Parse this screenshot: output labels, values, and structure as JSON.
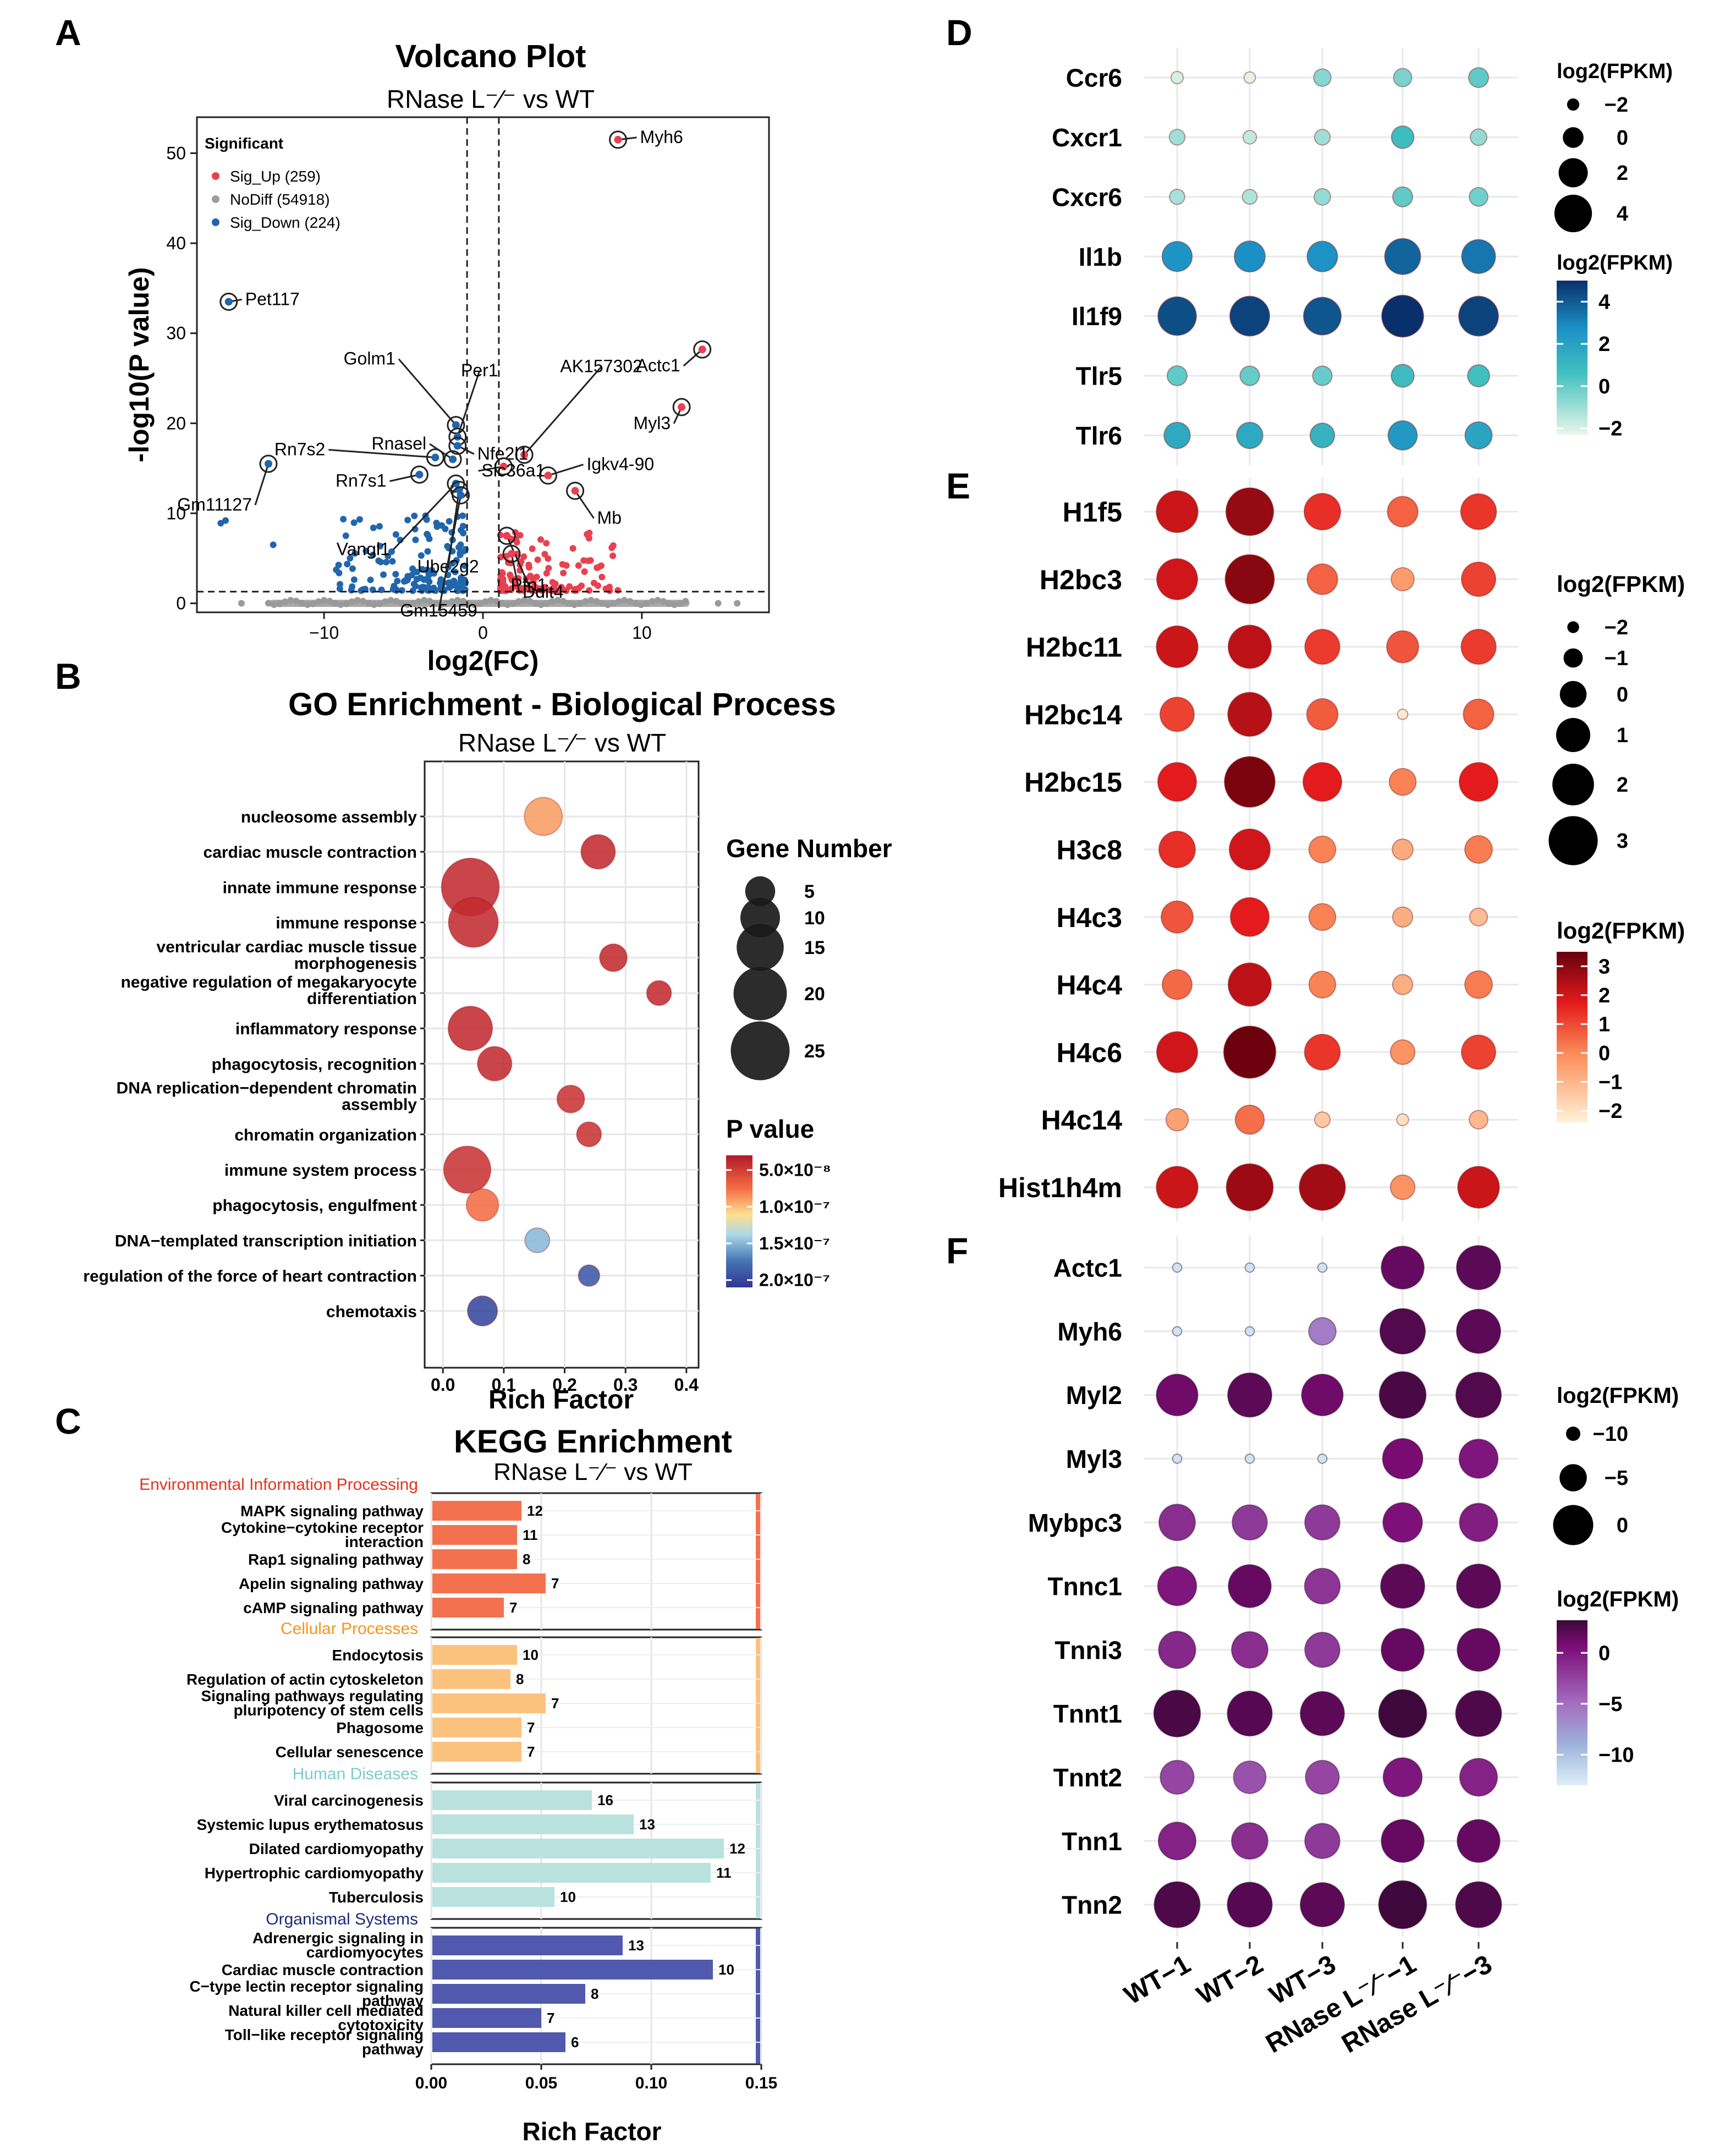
{
  "panel_letters": [
    "A",
    "B",
    "C",
    "D",
    "E",
    "F"
  ],
  "chart_data": [
    {
      "id": "volcano",
      "type": "scatter",
      "title": "Volcano Plot",
      "subtitle": "RNase L⁻⁄⁻ vs WT",
      "xlabel": "log2(FC)",
      "ylabel": "-log10(P value)",
      "xlim": [
        -18,
        18
      ],
      "ylim": [
        -1,
        54
      ],
      "xticks": [
        -10,
        0,
        10
      ],
      "xtick_labels": [
        "−10",
        "0",
        "10"
      ],
      "yticks": [
        0,
        10,
        20,
        30,
        40,
        50
      ],
      "fc_threshold": [
        -1,
        1
      ],
      "p_threshold": 1.3,
      "legend_title": "Significant",
      "legend": [
        {
          "label": "Sig_Up (259)",
          "color": "#e8414f"
        },
        {
          "label": "NoDiff (54918)",
          "color": "#9e9e9e"
        },
        {
          "label": "Sig_Down (224)",
          "color": "#2166ac"
        }
      ],
      "labeled_points": [
        {
          "gene": "Myh6",
          "x": 8.5,
          "y": 51.5,
          "group": "up"
        },
        {
          "gene": "Pet117",
          "x": -16.0,
          "y": 33.5,
          "group": "down"
        },
        {
          "gene": "Actc1",
          "x": 13.8,
          "y": 28.2,
          "group": "up"
        },
        {
          "gene": "Myl3",
          "x": 12.5,
          "y": 21.8,
          "group": "up"
        },
        {
          "gene": "Golm1",
          "x": -1.7,
          "y": 19.8,
          "group": "down"
        },
        {
          "gene": "Per1",
          "x": -1.6,
          "y": 18.5,
          "group": "down"
        },
        {
          "gene": "AK157302",
          "x": 2.6,
          "y": 16.5,
          "group": "up"
        },
        {
          "gene": "Nfe2l1",
          "x": -1.6,
          "y": 17.5,
          "group": "down"
        },
        {
          "gene": "Rn7s2",
          "x": -3.0,
          "y": 16.2,
          "group": "down"
        },
        {
          "gene": "Rnasel",
          "x": -1.9,
          "y": 16.0,
          "group": "down"
        },
        {
          "gene": "Gm11127",
          "x": -13.5,
          "y": 15.5,
          "group": "down"
        },
        {
          "gene": "Igkv4-90",
          "x": 4.1,
          "y": 14.2,
          "group": "up"
        },
        {
          "gene": "Rn7s1",
          "x": -4.0,
          "y": 14.3,
          "group": "down"
        },
        {
          "gene": "Slc36a1",
          "x": 1.3,
          "y": 15.2,
          "group": "up"
        },
        {
          "gene": "Mb",
          "x": 5.8,
          "y": 12.5,
          "group": "up"
        },
        {
          "gene": "Vangl1",
          "x": -1.7,
          "y": 13.3,
          "group": "down"
        },
        {
          "gene": "Ube2g2",
          "x": -1.5,
          "y": 12.6,
          "group": "down"
        },
        {
          "gene": "Pfn1",
          "x": 1.5,
          "y": 7.5,
          "group": "up"
        },
        {
          "gene": "Gm15459",
          "x": -1.4,
          "y": 12.0,
          "group": "down"
        },
        {
          "gene": "Ddit4",
          "x": 1.8,
          "y": 5.5,
          "group": "up"
        }
      ]
    },
    {
      "id": "go",
      "type": "scatter",
      "title": "GO Enrichment - Biological Process",
      "subtitle": "RNase L⁻⁄⁻ vs WT",
      "xlabel": "Rich Factor",
      "xlim": [
        -0.03,
        0.42
      ],
      "xticks": [
        0.0,
        0.1,
        0.2,
        0.3,
        0.4
      ],
      "xtick_labels": [
        "0.0",
        "0.1",
        "0.2",
        "0.3",
        "0.4"
      ],
      "terms": [
        {
          "label": [
            "nucleosome assembly"
          ],
          "rich": 0.165,
          "genes": 9,
          "p": 9e-08
        },
        {
          "label": [
            "cardiac muscle contraction"
          ],
          "rich": 0.255,
          "genes": 7,
          "p": 4e-08
        },
        {
          "label": [
            "innate immune response"
          ],
          "rich": 0.045,
          "genes": 24,
          "p": 4e-08
        },
        {
          "label": [
            "immune response"
          ],
          "rich": 0.05,
          "genes": 17,
          "p": 4e-08
        },
        {
          "label": [
            "ventricular cardiac muscle tissue",
            "morphogenesis"
          ],
          "rich": 0.28,
          "genes": 4,
          "p": 4e-08
        },
        {
          "label": [
            "negative regulation of megakaryocyte",
            "differentiation"
          ],
          "rich": 0.355,
          "genes": 3,
          "p": 4e-08
        },
        {
          "label": [
            "inflammatory response"
          ],
          "rich": 0.045,
          "genes": 13,
          "p": 4e-08
        },
        {
          "label": [
            "phagocytosis, recognition"
          ],
          "rich": 0.085,
          "genes": 7,
          "p": 4e-08
        },
        {
          "label": [
            "DNA replication−dependent chromatin",
            "assembly"
          ],
          "rich": 0.21,
          "genes": 4,
          "p": 4.5e-08
        },
        {
          "label": [
            "chromatin organization"
          ],
          "rich": 0.24,
          "genes": 3,
          "p": 4.5e-08
        },
        {
          "label": [
            "immune system process"
          ],
          "rich": 0.04,
          "genes": 15,
          "p": 4.5e-08
        },
        {
          "label": [
            "phagocytosis, engulfment"
          ],
          "rich": 0.065,
          "genes": 6,
          "p": 7.5e-08
        },
        {
          "label": [
            "DNA−templated transcription initiation"
          ],
          "rich": 0.155,
          "genes": 3,
          "p": 1.5e-07
        },
        {
          "label": [
            "regulation of the force of heart contraction"
          ],
          "rich": 0.24,
          "genes": 2,
          "p": 1.9e-07
        },
        {
          "label": [
            "chemotaxis"
          ],
          "rich": 0.065,
          "genes": 5,
          "p": 2e-07
        }
      ],
      "size_legend_title": "Gene Number",
      "size_legend": [
        5,
        10,
        15,
        20,
        25
      ],
      "color_legend_title": "P value",
      "color_legend": [
        "5.0×10⁻⁸",
        "1.0×10⁻⁷",
        "1.5×10⁻⁷",
        "2.0×10⁻⁷"
      ],
      "color_legend_values": [
        5e-08,
        1e-07,
        1.5e-07,
        2e-07
      ],
      "color_range": [
        3e-08,
        2.1e-07
      ]
    },
    {
      "id": "kegg",
      "type": "bar",
      "title": "KEGG Enrichment",
      "subtitle": "RNase L⁻⁄⁻ vs WT",
      "xlabel": "Rich Factor",
      "xlim": [
        0,
        0.15
      ],
      "xticks": [
        0.0,
        0.05,
        0.1,
        0.15
      ],
      "xtick_labels": [
        "0.00",
        "0.05",
        "0.10",
        "0.15"
      ],
      "groups": [
        {
          "name": "Environmental Information Processing",
          "color": "#f4714f",
          "label_color": "#e8321e",
          "bars": [
            {
              "label": [
                "MAPK signaling pathway"
              ],
              "value": 0.041,
              "count": 12
            },
            {
              "label": [
                "Cytokine−cytokine receptor",
                "interaction"
              ],
              "value": 0.039,
              "count": 11
            },
            {
              "label": [
                "Rap1 signaling pathway"
              ],
              "value": 0.039,
              "count": 8
            },
            {
              "label": [
                "Apelin signaling pathway"
              ],
              "value": 0.052,
              "count": 7
            },
            {
              "label": [
                "cAMP signaling pathway"
              ],
              "value": 0.033,
              "count": 7
            }
          ]
        },
        {
          "name": "Cellular Processes",
          "color": "#fbc27e",
          "label_color": "#f7941d",
          "bars": [
            {
              "label": [
                "Endocytosis"
              ],
              "value": 0.039,
              "count": 10
            },
            {
              "label": [
                "Regulation of actin cytoskeleton"
              ],
              "value": 0.036,
              "count": 8
            },
            {
              "label": [
                "Signaling pathways regulating",
                "pluripotency of stem cells"
              ],
              "value": 0.052,
              "count": 7
            },
            {
              "label": [
                "Phagosome"
              ],
              "value": 0.041,
              "count": 7
            },
            {
              "label": [
                "Cellular senescence"
              ],
              "value": 0.041,
              "count": 7
            }
          ]
        },
        {
          "name": "Human Diseases",
          "color": "#b9e2df",
          "label_color": "#7ecdc6",
          "bars": [
            {
              "label": [
                "Viral carcinogenesis"
              ],
              "value": 0.073,
              "count": 16
            },
            {
              "label": [
                "Systemic lupus erythematosus"
              ],
              "value": 0.092,
              "count": 13
            },
            {
              "label": [
                "Dilated cardiomyopathy"
              ],
              "value": 0.133,
              "count": 12
            },
            {
              "label": [
                "Hypertrophic cardiomyopathy"
              ],
              "value": 0.127,
              "count": 11
            },
            {
              "label": [
                "Tuberculosis"
              ],
              "value": 0.056,
              "count": 10
            }
          ]
        },
        {
          "name": "Organismal Systems",
          "color": "#5059ad",
          "label_color": "#1f2a7a",
          "bars": [
            {
              "label": [
                "Adrenergic signaling in",
                "cardiomyocytes"
              ],
              "value": 0.087,
              "count": 13
            },
            {
              "label": [
                "Cardiac muscle contraction"
              ],
              "value": 0.128,
              "count": 10
            },
            {
              "label": [
                "C−type lectin receptor signaling",
                "pathway"
              ],
              "value": 0.07,
              "count": 8
            },
            {
              "label": [
                "Natural killer cell mediated",
                "cytotoxicity"
              ],
              "value": 0.05,
              "count": 7
            },
            {
              "label": [
                "Toll−like receptor signaling",
                "pathway"
              ],
              "value": 0.061,
              "count": 6
            }
          ]
        }
      ]
    },
    {
      "id": "dot_d",
      "type": "heatmap",
      "samples": [
        "WT−1",
        "WT−2",
        "WT−3",
        "RNase L⁻⁄⁻−1",
        "RNase L⁻⁄⁻−3"
      ],
      "genes": [
        "Ccr6",
        "Cxcr1",
        "Cxcr6",
        "Il1b",
        "Il1f9",
        "Tlr5",
        "Tlr6"
      ],
      "values": [
        [
          -2.0,
          -2.2,
          -0.8,
          -0.6,
          -0.2
        ],
        [
          -1.2,
          -1.7,
          -1.2,
          0.4,
          -1.0
        ],
        [
          -1.3,
          -1.4,
          -1.0,
          -0.2,
          -0.5
        ],
        [
          2.2,
          2.4,
          2.3,
          3.6,
          3.1
        ],
        [
          4.2,
          4.5,
          4.0,
          5.0,
          4.5
        ],
        [
          -0.2,
          -0.3,
          -0.3,
          0.5,
          0.3
        ],
        [
          1.3,
          1.3,
          0.9,
          2.0,
          1.5
        ]
      ],
      "size_legend_title": "log2(FPKM)",
      "size_legend": [
        -2,
        0,
        2,
        4
      ],
      "size_legend_labels": [
        "−2",
        "0",
        "2",
        "4"
      ],
      "color_legend_title": "log2(FPKM)",
      "color_legend": [
        4,
        2,
        0,
        -2
      ],
      "color_legend_labels": [
        "4",
        "2",
        "0",
        "−2"
      ],
      "range": [
        -2.3,
        5.0
      ]
    },
    {
      "id": "dot_e",
      "type": "heatmap",
      "samples": [
        "WT−1",
        "WT−2",
        "WT−3",
        "RNase L⁻⁄⁻−1",
        "RNase L⁻⁄⁻−3"
      ],
      "genes": [
        "H1f5",
        "H2bc3",
        "H2bc11",
        "H2bc14",
        "H2bc15",
        "H3c8",
        "H4c3",
        "H4c4",
        "H4c6",
        "H4c14",
        "Hist1h4m"
      ],
      "values": [
        [
          2.0,
          2.8,
          1.3,
          0.5,
          1.2
        ],
        [
          1.9,
          3.0,
          0.5,
          -0.5,
          1.0
        ],
        [
          2.0,
          2.2,
          1.1,
          0.7,
          1.1
        ],
        [
          1.0,
          2.3,
          0.6,
          -2.2,
          0.5
        ],
        [
          1.6,
          3.2,
          1.6,
          0.0,
          1.6
        ],
        [
          1.3,
          1.9,
          0.0,
          -0.8,
          0.1
        ],
        [
          0.7,
          1.6,
          0.0,
          -0.9,
          -1.2
        ],
        [
          0.4,
          2.2,
          0.0,
          -0.9,
          0.1
        ],
        [
          1.9,
          3.4,
          1.2,
          -0.3,
          1.0
        ],
        [
          -0.6,
          0.3,
          -1.5,
          -2.0,
          -1.1
        ],
        [
          2.0,
          2.7,
          2.6,
          -0.3,
          2.0
        ]
      ],
      "size_legend_title": "log2(FPKM)",
      "size_legend": [
        -2,
        -1,
        0,
        1,
        2,
        3
      ],
      "size_legend_labels": [
        "−2",
        "−1",
        "0",
        "1",
        "2",
        "3"
      ],
      "color_legend_title": "log2(FPKM)",
      "color_legend": [
        3,
        2,
        1,
        0,
        -1,
        -2
      ],
      "color_legend_labels": [
        "3",
        "2",
        "1",
        "0",
        "−1",
        "−2"
      ],
      "range": [
        -2.4,
        3.5
      ]
    },
    {
      "id": "dot_f",
      "type": "heatmap",
      "samples": [
        "WT−1",
        "WT−2",
        "WT−3",
        "RNase L⁻⁄⁻−1",
        "RNase L⁻⁄⁻−3"
      ],
      "genes": [
        "Actc1",
        "Myh6",
        "Myl2",
        "Myl3",
        "Mybpc3",
        "Tnnc1",
        "Tnni3",
        "Tnnt1",
        "Tnnt2",
        "Tnn1",
        "Tnn2"
      ],
      "values": [
        [
          -12.0,
          -12.0,
          -12.0,
          1.0,
          1.5
        ],
        [
          -12.0,
          -12.0,
          -5.0,
          2.0,
          1.5
        ],
        [
          0.5,
          1.5,
          0.5,
          2.5,
          2.0
        ],
        [
          -12.0,
          -12.0,
          -12.0,
          0.0,
          -0.5
        ],
        [
          -1.5,
          -2.0,
          -2.0,
          -0.3,
          -0.8
        ],
        [
          -0.5,
          1.0,
          -1.8,
          1.5,
          1.5
        ],
        [
          -1.2,
          -1.5,
          -2.0,
          1.0,
          1.0
        ],
        [
          2.5,
          1.8,
          1.5,
          3.0,
          2.2
        ],
        [
          -2.5,
          -3.0,
          -2.5,
          -0.5,
          -1.0
        ],
        [
          -1.0,
          -1.5,
          -2.0,
          1.0,
          1.0
        ],
        [
          2.2,
          1.8,
          1.5,
          3.0,
          2.2
        ]
      ],
      "size_legend_title": "log2(FPKM)",
      "size_legend": [
        -10,
        -5,
        0
      ],
      "size_legend_labels": [
        "−10",
        "−5",
        "0"
      ],
      "color_legend_title": "log2(FPKM)",
      "color_legend": [
        0,
        -5,
        -10
      ],
      "color_legend_labels": [
        "0",
        "−5",
        "−10"
      ],
      "range": [
        -13,
        3.2
      ]
    }
  ]
}
